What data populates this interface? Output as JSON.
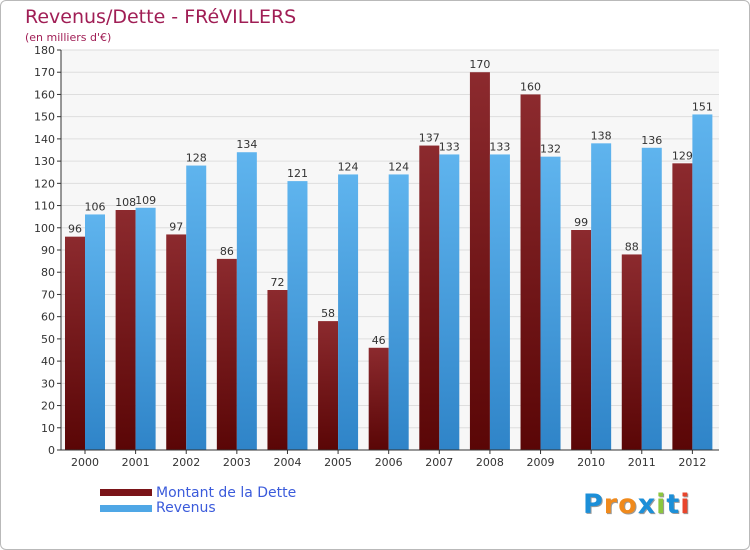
{
  "header": {
    "title": "Revenus/Dette - FRéVILLERS",
    "subtitle": "(en milliers d'€)"
  },
  "colors": {
    "dette": "#7a1418",
    "revenus": "#4fa7e6",
    "title": "#a01e55",
    "legend_text": "#3b5bdb"
  },
  "legend": {
    "dette_label": "Montant de la Dette",
    "revenus_label": "Revenus"
  },
  "logo": {
    "text": "Proxiti",
    "letters": [
      "P",
      "r",
      "o",
      "x",
      "i",
      "t",
      "i"
    ],
    "colors": [
      "#1c8fd8",
      "#f08a1c",
      "#f08a1c",
      "#1c8fd8",
      "#8cc63f",
      "#1c8fd8",
      "#e8452c"
    ]
  },
  "chart_data": {
    "type": "bar",
    "categories": [
      "2000",
      "2001",
      "2002",
      "2003",
      "2004",
      "2005",
      "2006",
      "2007",
      "2008",
      "2009",
      "2010",
      "2011",
      "2012"
    ],
    "series": [
      {
        "name": "Montant de la Dette",
        "values": [
          96,
          108,
          97,
          86,
          72,
          58,
          46,
          137,
          170,
          160,
          99,
          88,
          129
        ]
      },
      {
        "name": "Revenus",
        "values": [
          106,
          109,
          128,
          134,
          121,
          124,
          124,
          133,
          133,
          132,
          138,
          136,
          151
        ]
      }
    ],
    "ylim": [
      0,
      180
    ],
    "yticks": [
      0,
      10,
      20,
      30,
      40,
      50,
      60,
      70,
      80,
      90,
      100,
      110,
      120,
      130,
      140,
      150,
      160,
      170,
      180
    ],
    "grid": true,
    "legend_position": "bottom-left"
  }
}
